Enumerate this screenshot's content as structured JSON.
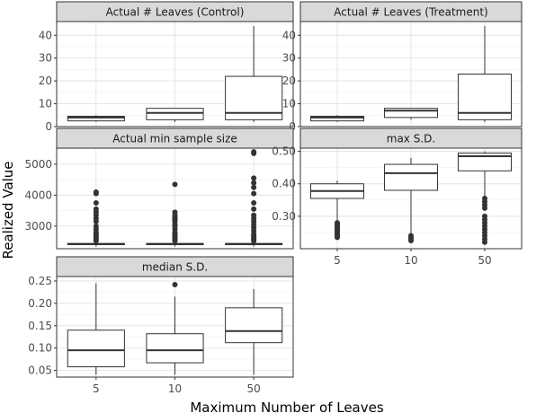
{
  "chart_data": {
    "type": "boxplot",
    "xlabel": "Maximum Number of Leaves",
    "ylabel": "Realized Value",
    "categories": [
      "5",
      "10",
      "50"
    ],
    "grid": true,
    "panels": [
      {
        "title": "Actual # Leaves (Control)",
        "ylim": [
          0,
          46
        ],
        "yticks": [
          0,
          10,
          20,
          30,
          40
        ],
        "boxes": [
          {
            "x": "5",
            "min": 2,
            "q1": 2.5,
            "median": 4,
            "q3": 4.5,
            "max": 5,
            "outliers": []
          },
          {
            "x": "10",
            "min": 2,
            "q1": 3,
            "median": 6,
            "q3": 8,
            "max": 8,
            "outliers": []
          },
          {
            "x": "50",
            "min": 2,
            "q1": 3,
            "median": 6,
            "q3": 22,
            "max": 44,
            "outliers": []
          }
        ]
      },
      {
        "title": "Actual # Leaves (Treatment)",
        "ylim": [
          0,
          46
        ],
        "yticks": [
          0,
          10,
          20,
          30,
          40
        ],
        "boxes": [
          {
            "x": "5",
            "min": 2,
            "q1": 2.5,
            "median": 4,
            "q3": 4.5,
            "max": 5,
            "outliers": []
          },
          {
            "x": "10",
            "min": 3,
            "q1": 4,
            "median": 7,
            "q3": 8,
            "max": 8,
            "outliers": []
          },
          {
            "x": "50",
            "min": 2,
            "q1": 3,
            "median": 6,
            "q3": 23,
            "max": 44,
            "outliers": []
          }
        ]
      },
      {
        "title": "Actual min sample size",
        "ylim": [
          2270,
          5520
        ],
        "yticks": [
          3000,
          4000,
          5000
        ],
        "boxes": [
          {
            "x": "5",
            "min": 2340,
            "q1": 2400,
            "median": 2420,
            "q3": 2440,
            "max": 2460,
            "outliers": [
              2520,
              2560,
              2600,
              2650,
              2700,
              2750,
              2800,
              2900,
              3000,
              3150,
              3250,
              3350,
              3450,
              3550,
              3750,
              4050,
              4100
            ]
          },
          {
            "x": "10",
            "min": 2340,
            "q1": 2400,
            "median": 2420,
            "q3": 2440,
            "max": 2460,
            "outliers": [
              2520,
              2560,
              2600,
              2650,
              2700,
              2750,
              2800,
              2900,
              3000,
              3050,
              3150,
              3200,
              3250,
              3300,
              3350,
              3450,
              4350
            ]
          },
          {
            "x": "50",
            "min": 2340,
            "q1": 2400,
            "median": 2420,
            "q3": 2440,
            "max": 2460,
            "outliers": [
              2520,
              2560,
              2600,
              2650,
              2700,
              2750,
              2850,
              2950,
              3050,
              3150,
              3250,
              3350,
              3550,
              3750,
              4050,
              4250,
              4400,
              4550,
              5350,
              5400
            ]
          }
        ]
      },
      {
        "title": "max S.D.",
        "ylim": [
          0.2,
          0.51
        ],
        "yticks": [
          0.3,
          0.4,
          0.5
        ],
        "boxes": [
          {
            "x": "5",
            "min": 0.285,
            "q1": 0.355,
            "median": 0.378,
            "q3": 0.4,
            "max": 0.41,
            "outliers": [
              0.28,
              0.275,
              0.27,
              0.265,
              0.26,
              0.255,
              0.25,
              0.245,
              0.24,
              0.235
            ]
          },
          {
            "x": "10",
            "min": 0.245,
            "q1": 0.38,
            "median": 0.433,
            "q3": 0.46,
            "max": 0.48,
            "outliers": [
              0.24,
              0.235,
              0.23,
              0.225
            ]
          },
          {
            "x": "50",
            "min": 0.36,
            "q1": 0.44,
            "median": 0.485,
            "q3": 0.495,
            "max": 0.5,
            "outliers": [
              0.355,
              0.345,
              0.335,
              0.325,
              0.3,
              0.29,
              0.28,
              0.27,
              0.26,
              0.25,
              0.24,
              0.23,
              0.22
            ]
          }
        ]
      },
      {
        "title": "median S.D.",
        "ylim": [
          0.035,
          0.26
        ],
        "yticks": [
          0.05,
          0.1,
          0.15,
          0.2,
          0.25
        ],
        "boxes": [
          {
            "x": "5",
            "min": 0.04,
            "q1": 0.058,
            "median": 0.095,
            "q3": 0.14,
            "max": 0.245,
            "outliers": []
          },
          {
            "x": "10",
            "min": 0.04,
            "q1": 0.067,
            "median": 0.095,
            "q3": 0.132,
            "max": 0.215,
            "outliers": [
              0.242
            ]
          },
          {
            "x": "50",
            "min": 0.04,
            "q1": 0.112,
            "median": 0.138,
            "q3": 0.19,
            "max": 0.232,
            "outliers": []
          }
        ]
      }
    ]
  }
}
